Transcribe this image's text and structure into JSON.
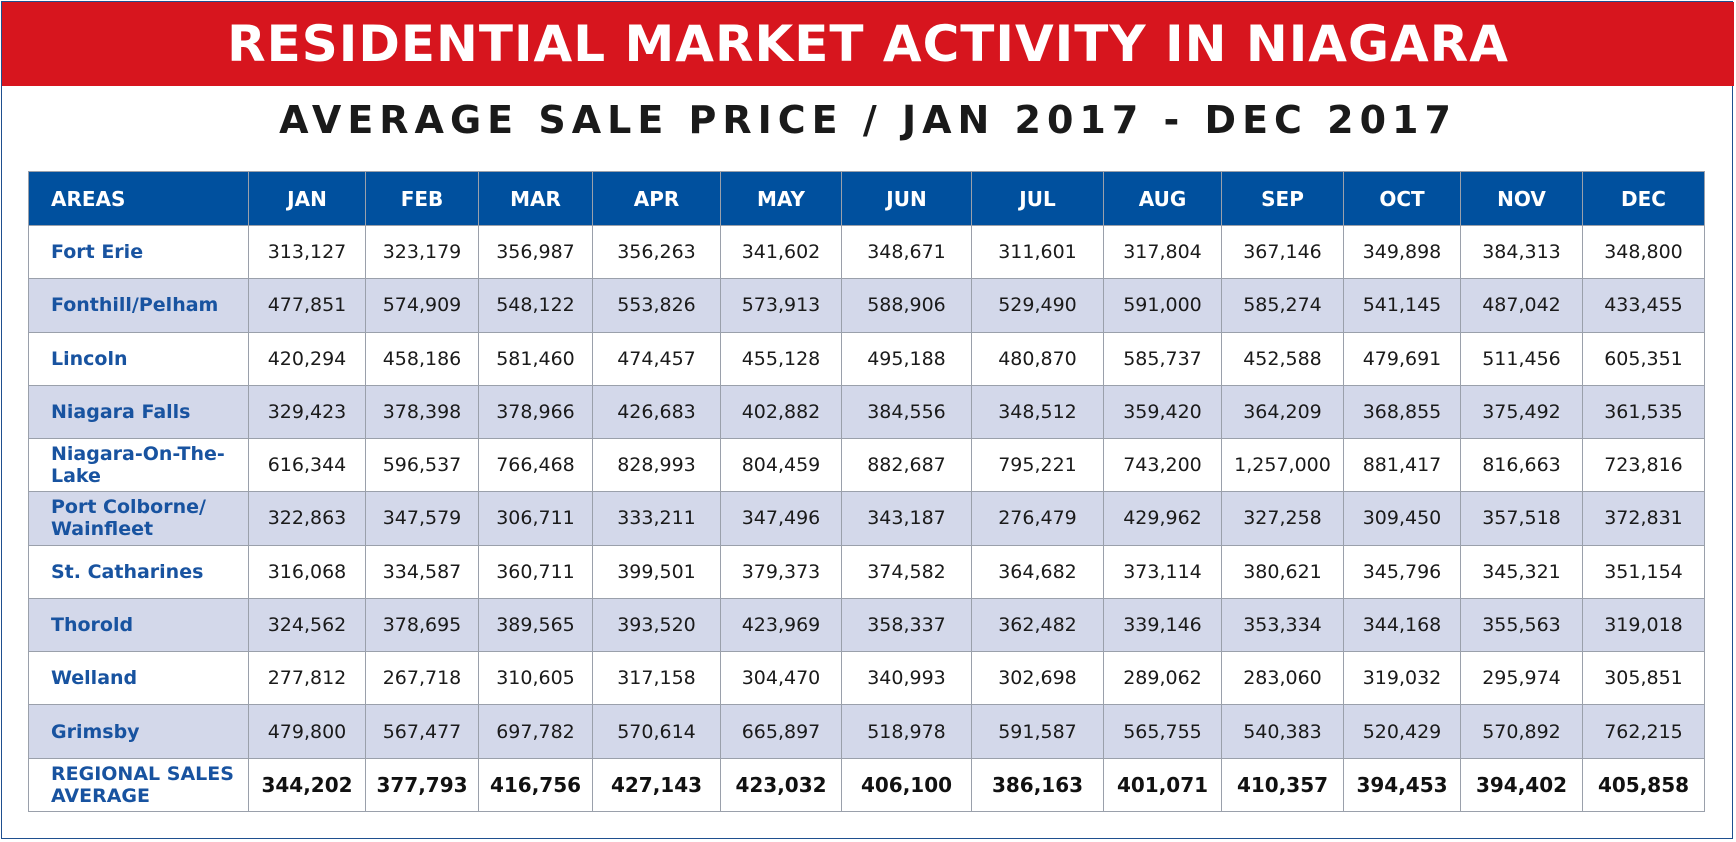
{
  "header": {
    "title": "RESIDENTIAL MARKET ACTIVITY IN NIAGARA",
    "subtitle": "AVERAGE SALE PRICE / JAN 2017 - DEC 2017"
  },
  "colors": {
    "banner": "#d7151e",
    "header_row": "#00509e",
    "alt_row": "#d3d8ea",
    "area_text": "#1853a0"
  },
  "chart_data": {
    "type": "table",
    "title": "AVERAGE SALE PRICE / JAN 2017 - DEC 2017",
    "columns": [
      "AREAS",
      "JAN",
      "FEB",
      "MAR",
      "APR",
      "MAY",
      "JUN",
      "JUL",
      "AUG",
      "SEP",
      "OCT",
      "NOV",
      "DEC"
    ],
    "rows": [
      {
        "area": "Fort Erie",
        "values": [
          "313,127",
          "323,179",
          "356,987",
          "356,263",
          "341,602",
          "348,671",
          "311,601",
          "317,804",
          "367,146",
          "349,898",
          "384,313",
          "348,800"
        ]
      },
      {
        "area": "Fonthill/Pelham",
        "values": [
          "477,851",
          "574,909",
          "548,122",
          "553,826",
          "573,913",
          "588,906",
          "529,490",
          "591,000",
          "585,274",
          "541,145",
          "487,042",
          "433,455"
        ]
      },
      {
        "area": "Lincoln",
        "values": [
          "420,294",
          "458,186",
          "581,460",
          "474,457",
          "455,128",
          "495,188",
          "480,870",
          "585,737",
          "452,588",
          "479,691",
          "511,456",
          "605,351"
        ]
      },
      {
        "area": "Niagara Falls",
        "values": [
          "329,423",
          "378,398",
          "378,966",
          "426,683",
          "402,882",
          "384,556",
          "348,512",
          "359,420",
          "364,209",
          "368,855",
          "375,492",
          "361,535"
        ]
      },
      {
        "area": "Niagara-On-The-Lake",
        "values": [
          "616,344",
          "596,537",
          "766,468",
          "828,993",
          "804,459",
          "882,687",
          "795,221",
          "743,200",
          "1,257,000",
          "881,417",
          "816,663",
          "723,816"
        ]
      },
      {
        "area": "Port Colborne/ Wainfleet",
        "values": [
          "322,863",
          "347,579",
          "306,711",
          "333,211",
          "347,496",
          "343,187",
          "276,479",
          "429,962",
          "327,258",
          "309,450",
          "357,518",
          "372,831"
        ]
      },
      {
        "area": "St. Catharines",
        "values": [
          "316,068",
          "334,587",
          "360,711",
          "399,501",
          "379,373",
          "374,582",
          "364,682",
          "373,114",
          "380,621",
          "345,796",
          "345,321",
          "351,154"
        ]
      },
      {
        "area": "Thorold",
        "values": [
          "324,562",
          "378,695",
          "389,565",
          "393,520",
          "423,969",
          "358,337",
          "362,482",
          "339,146",
          "353,334",
          "344,168",
          "355,563",
          "319,018"
        ]
      },
      {
        "area": "Welland",
        "values": [
          "277,812",
          "267,718",
          "310,605",
          "317,158",
          "304,470",
          "340,993",
          "302,698",
          "289,062",
          "283,060",
          "319,032",
          "295,974",
          "305,851"
        ]
      },
      {
        "area": "Grimsby",
        "values": [
          "479,800",
          "567,477",
          "697,782",
          "570,614",
          "665,897",
          "518,978",
          "591,587",
          "565,755",
          "540,383",
          "520,429",
          "570,892",
          "762,215"
        ]
      }
    ],
    "total": {
      "area": "REGIONAL SALES AVERAGE",
      "values": [
        "344,202",
        "377,793",
        "416,756",
        "427,143",
        "423,032",
        "406,100",
        "386,163",
        "401,071",
        "410,357",
        "394,453",
        "394,402",
        "405,858"
      ]
    }
  }
}
